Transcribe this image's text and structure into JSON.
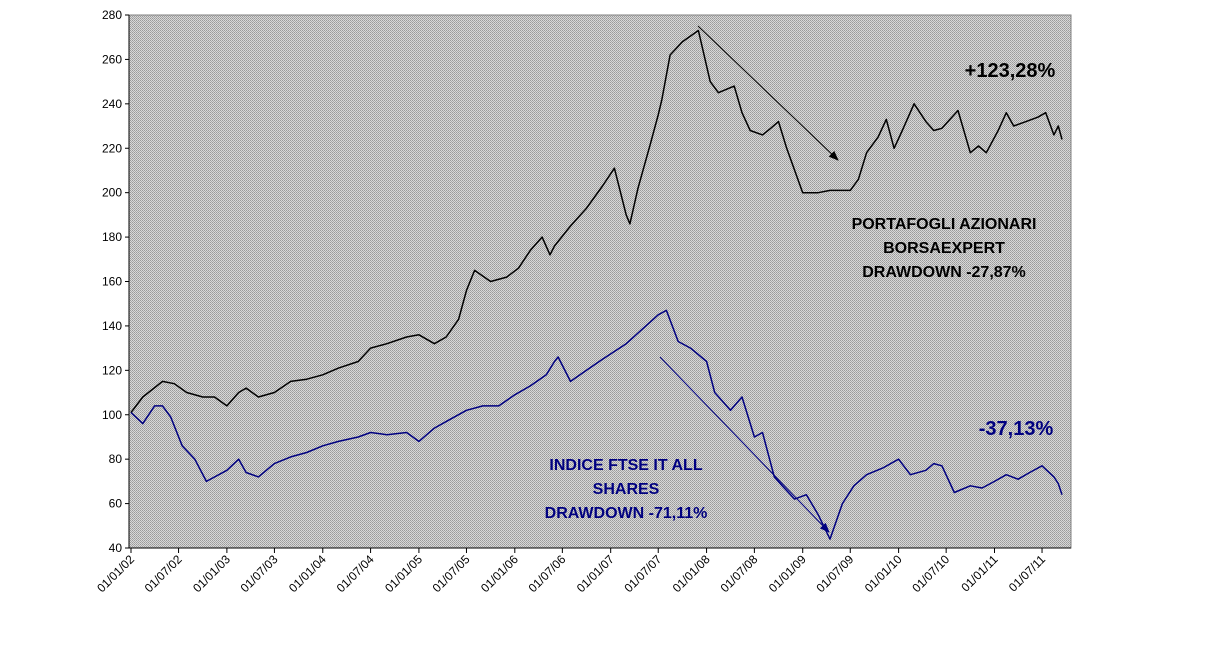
{
  "chart_data": {
    "type": "line",
    "title": "",
    "xlabel": "",
    "ylabel": "",
    "ylim": [
      40,
      280
    ],
    "yticks": [
      "40",
      "60",
      "80",
      "100",
      "120",
      "140",
      "160",
      "180",
      "200",
      "220",
      "240",
      "260",
      "280"
    ],
    "xticks": [
      "01/01/02",
      "01/07/02",
      "01/01/03",
      "01/07/03",
      "01/01/04",
      "01/07/04",
      "01/01/05",
      "01/07/05",
      "01/01/06",
      "01/07/06",
      "01/01/07",
      "01/07/07",
      "01/01/08",
      "01/07/08",
      "01/01/09",
      "01/07/09",
      "01/01/10",
      "01/07/10",
      "01/01/11",
      "01/07/11"
    ],
    "grid": false,
    "plot_background": "#c0c0c0",
    "series": [
      {
        "color": "#000000",
        "x": [
          "2002-01-01",
          "2002-02-15",
          "2002-05-01",
          "2002-06-15",
          "2002-08-01",
          "2002-10-01",
          "2002-11-15",
          "2003-01-01",
          "2003-02-15",
          "2003-03-15",
          "2003-05-01",
          "2003-07-01",
          "2003-09-01",
          "2003-11-01",
          "2004-01-01",
          "2004-03-01",
          "2004-05-15",
          "2004-07-01",
          "2004-09-01",
          "2004-11-15",
          "2005-01-01",
          "2005-03-01",
          "2005-04-15",
          "2005-06-01",
          "2005-07-01",
          "2005-08-01",
          "2005-10-01",
          "2005-12-01",
          "2006-01-15",
          "2006-03-01",
          "2006-04-15",
          "2006-05-15",
          "2006-06-01",
          "2006-06-15",
          "2006-08-01",
          "2006-10-01",
          "2006-12-01",
          "2007-01-15",
          "2007-03-01",
          "2007-03-15",
          "2007-04-15",
          "2007-06-01",
          "2007-07-01",
          "2007-07-15",
          "2007-08-15",
          "2007-10-01",
          "2007-12-01",
          "2008-01-15",
          "2008-02-15",
          "2008-04-15",
          "2008-05-15",
          "2008-06-15",
          "2008-08-01",
          "2008-09-01",
          "2008-10-01",
          "2008-11-01",
          "2009-01-01",
          "2009-03-01",
          "2009-04-15",
          "2009-06-01",
          "2009-07-01",
          "2009-08-01",
          "2009-09-01",
          "2009-10-15",
          "2009-11-15",
          "2009-12-15",
          "2010-01-15",
          "2010-03-01",
          "2010-04-15",
          "2010-05-15",
          "2010-06-15",
          "2010-08-15",
          "2010-10-01",
          "2010-11-01",
          "2010-12-01",
          "2011-01-15",
          "2011-02-15",
          "2011-03-15",
          "2011-05-01",
          "2011-06-15",
          "2011-07-15",
          "2011-08-15",
          "2011-09-01",
          "2011-09-15"
        ],
        "values": [
          101,
          108,
          115,
          114,
          110,
          108,
          108,
          104,
          110,
          112,
          108,
          110,
          115,
          116,
          118,
          121,
          124,
          130,
          132,
          135,
          136,
          132,
          135,
          143,
          156,
          165,
          160,
          162,
          166,
          174,
          180,
          172,
          176,
          178,
          185,
          193,
          203,
          211,
          190,
          186,
          202,
          222,
          235,
          242,
          262,
          268,
          273,
          250,
          245,
          248,
          236,
          228,
          226,
          229,
          232,
          220,
          200,
          200,
          201,
          201,
          201,
          206,
          218,
          225,
          233,
          220,
          228,
          240,
          232,
          228,
          229,
          237,
          218,
          221,
          218,
          228,
          236,
          230,
          232,
          234,
          236,
          226,
          230,
          224
        ],
        "name": ""
      },
      {
        "color": "#000080",
        "x": [
          "2002-01-01",
          "2002-02-15",
          "2002-04-01",
          "2002-05-01",
          "2002-06-01",
          "2002-07-15",
          "2002-09-01",
          "2002-10-15",
          "2003-01-01",
          "2003-02-15",
          "2003-03-15",
          "2003-05-01",
          "2003-07-01",
          "2003-09-01",
          "2003-11-01",
          "2004-01-01",
          "2004-03-01",
          "2004-05-15",
          "2004-07-01",
          "2004-09-01",
          "2004-11-15",
          "2005-01-01",
          "2005-03-01",
          "2005-05-01",
          "2005-07-01",
          "2005-09-01",
          "2005-11-01",
          "2006-01-01",
          "2006-03-01",
          "2006-05-01",
          "2006-06-01",
          "2006-06-15",
          "2006-08-01",
          "2006-10-01",
          "2006-12-01",
          "2007-03-01",
          "2007-05-15",
          "2007-07-01",
          "2007-08-01",
          "2007-09-15",
          "2007-11-01",
          "2008-01-01",
          "2008-02-01",
          "2008-04-01",
          "2008-05-15",
          "2008-07-01",
          "2008-08-01",
          "2008-09-15",
          "2008-10-15",
          "2008-12-01",
          "2009-01-15",
          "2009-03-01",
          "2009-04-15",
          "2009-06-01",
          "2009-07-15",
          "2009-09-01",
          "2009-11-01",
          "2010-01-01",
          "2010-02-15",
          "2010-04-15",
          "2010-05-15",
          "2010-06-15",
          "2010-08-01",
          "2010-10-01",
          "2010-11-15",
          "2011-01-01",
          "2011-02-15",
          "2011-04-01",
          "2011-05-15",
          "2011-07-01",
          "2011-08-15",
          "2011-09-01",
          "2011-09-15"
        ],
        "values": [
          101,
          96,
          104,
          104,
          99,
          86,
          80,
          70,
          75,
          80,
          74,
          72,
          78,
          81,
          83,
          86,
          88,
          90,
          92,
          91,
          92,
          88,
          94,
          98,
          102,
          104,
          104,
          109,
          113,
          118,
          124,
          126,
          115,
          120,
          125,
          132,
          140,
          145,
          147,
          133,
          130,
          124,
          110,
          102,
          108,
          90,
          92,
          72,
          68,
          62,
          64,
          55,
          44,
          60,
          68,
          73,
          76,
          80,
          73,
          75,
          78,
          77,
          65,
          68,
          67,
          70,
          73,
          71,
          74,
          77,
          72,
          69,
          64
        ],
        "name": ""
      }
    ],
    "annotations": {
      "top_pct": "+123,28%",
      "portfolio_label_1": "PORTAFOGLI AZIONARI",
      "portfolio_label_2": "BORSAEXPERT",
      "portfolio_label_3": "DRAWDOWN -27,87%",
      "bottom_pct": "-37,13%",
      "index_label_1": "INDICE FTSE IT ALL",
      "index_label_2": "SHARES",
      "index_label_3": "DRAWDOWN -71,11%"
    }
  }
}
